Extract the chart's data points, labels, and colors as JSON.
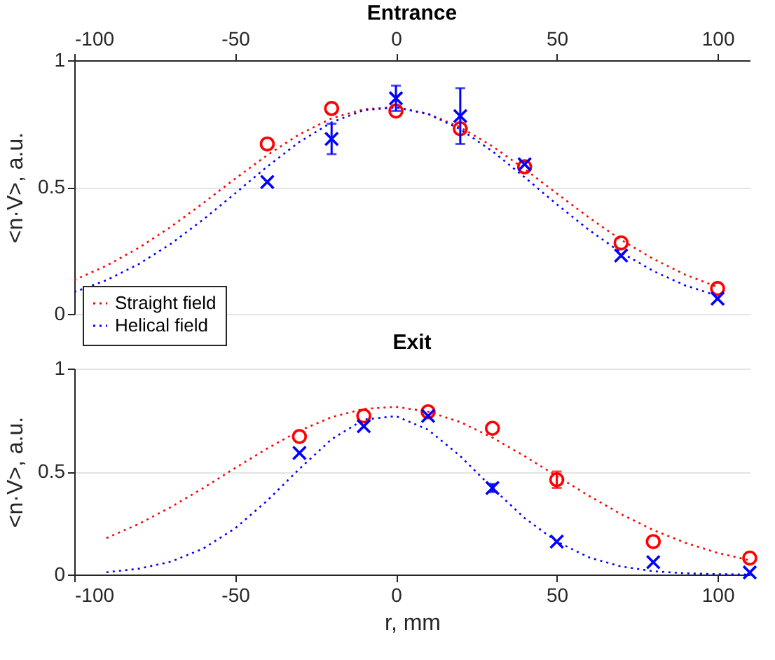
{
  "chart_data": [
    {
      "type": "line",
      "title": "Entrance",
      "ylabel": "<n·V>, a.u.",
      "xlim": [
        -100,
        110
      ],
      "xticks": [
        -100,
        -50,
        0,
        50,
        100
      ],
      "ylim": [
        0,
        1
      ],
      "yticks": [
        0,
        0.5,
        1
      ],
      "grid": "y",
      "legend": "bottom left",
      "series": [
        {
          "name": "Straight field",
          "color": "#ff0000",
          "line_style": "dotted",
          "marker": "none",
          "x": [
            -100,
            -90,
            -80,
            -70,
            -60,
            -50,
            -40,
            -30,
            -20,
            -10,
            0,
            10,
            20,
            30,
            40,
            50,
            60,
            70,
            80,
            90,
            100
          ],
          "values": [
            0.133,
            0.19,
            0.26,
            0.343,
            0.436,
            0.533,
            0.626,
            0.708,
            0.771,
            0.807,
            0.815,
            0.789,
            0.736,
            0.661,
            0.571,
            0.475,
            0.38,
            0.292,
            0.217,
            0.154,
            0.106
          ]
        },
        {
          "name": "Helical field",
          "color": "#0000ff",
          "line_style": "dotted",
          "marker": "none",
          "x": [
            -100,
            -90,
            -80,
            -70,
            -60,
            -50,
            -40,
            -30,
            -20,
            -10,
            0,
            10,
            20,
            30,
            40,
            50,
            60,
            70,
            80,
            90,
            100
          ],
          "values": [
            0.086,
            0.133,
            0.196,
            0.276,
            0.371,
            0.475,
            0.581,
            0.678,
            0.755,
            0.803,
            0.814,
            0.788,
            0.728,
            0.641,
            0.539,
            0.432,
            0.331,
            0.242,
            0.169,
            0.112,
            0.071
          ]
        },
        {
          "type": "scatter",
          "color": "#ff0000",
          "marker": "circle",
          "x": [
            -40,
            -20,
            0,
            20,
            40,
            70,
            100
          ],
          "values": [
            0.67,
            0.81,
            0.8,
            0.73,
            0.58,
            0.28,
            0.1
          ]
        },
        {
          "type": "scatter",
          "color": "#0000ff",
          "marker": "cross",
          "x": [
            -40,
            -20,
            0,
            20,
            40,
            70,
            100
          ],
          "values": [
            0.52,
            0.69,
            0.85,
            0.78,
            0.59,
            0.23,
            0.06
          ],
          "errors": [
            null,
            0.06,
            0.05,
            0.11,
            null,
            null,
            null
          ]
        }
      ]
    },
    {
      "type": "line",
      "title": "Exit",
      "xlabel": "r, mm",
      "ylabel": "<n·V>, a.u.",
      "xlim": [
        -100,
        110
      ],
      "xticks": [
        -100,
        -50,
        0,
        50,
        100
      ],
      "ylim": [
        0,
        1
      ],
      "yticks": [
        0,
        0.5,
        1
      ],
      "grid": "y",
      "series": [
        {
          "color": "#ff0000",
          "line_style": "dotted",
          "marker": "none",
          "x": [
            -90,
            -80,
            -70,
            -60,
            -50,
            -40,
            -30,
            -20,
            -10,
            0,
            10,
            20,
            30,
            40,
            50,
            60,
            70,
            80,
            90,
            100,
            110
          ],
          "values": [
            0.177,
            0.245,
            0.327,
            0.419,
            0.517,
            0.612,
            0.698,
            0.764,
            0.804,
            0.814,
            0.791,
            0.74,
            0.665,
            0.575,
            0.478,
            0.382,
            0.293,
            0.216,
            0.154,
            0.105,
            0.069
          ]
        },
        {
          "color": "#0000ff",
          "line_style": "dotted",
          "marker": "none",
          "x": [
            -90,
            -80,
            -70,
            -60,
            -50,
            -40,
            -30,
            -20,
            -10,
            0,
            10,
            20,
            30,
            40,
            50,
            60,
            70,
            80,
            90,
            100,
            110
          ],
          "values": [
            0.011,
            0.028,
            0.062,
            0.125,
            0.224,
            0.359,
            0.513,
            0.657,
            0.752,
            0.769,
            0.703,
            0.575,
            0.42,
            0.274,
            0.16,
            0.083,
            0.039,
            0.016,
            0.006,
            0.002,
            0
          ]
        },
        {
          "type": "scatter",
          "color": "#ff0000",
          "marker": "circle",
          "x": [
            -30,
            -10,
            10,
            30,
            50,
            80,
            110
          ],
          "values": [
            0.67,
            0.77,
            0.79,
            0.71,
            0.46,
            0.16,
            0.08
          ],
          "errors": [
            null,
            null,
            null,
            null,
            0.04,
            null,
            null
          ]
        },
        {
          "type": "scatter",
          "color": "#0000ff",
          "marker": "cross",
          "x": [
            -30,
            -10,
            10,
            30,
            50,
            80,
            110
          ],
          "values": [
            0.59,
            0.72,
            0.77,
            0.42,
            0.16,
            0.06,
            0.01
          ],
          "errors": [
            null,
            null,
            null,
            0.02,
            null,
            null,
            null
          ]
        }
      ]
    }
  ]
}
